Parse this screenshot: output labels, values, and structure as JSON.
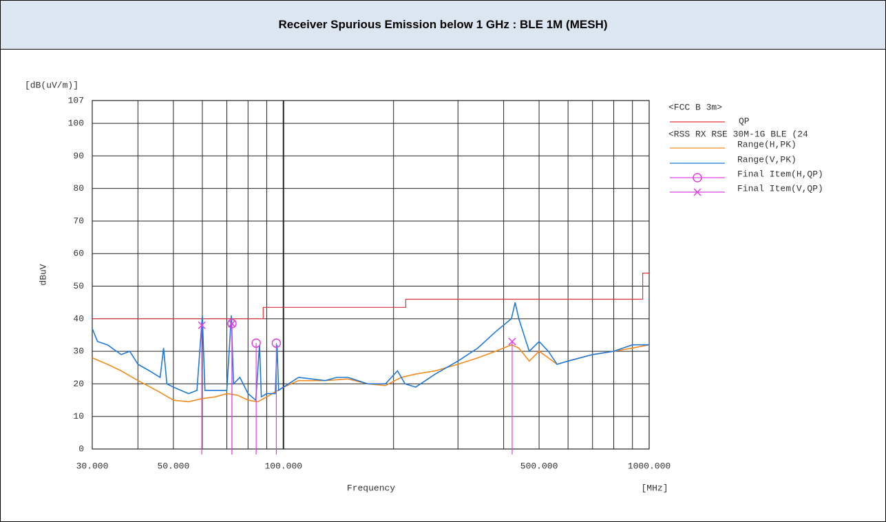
{
  "chart_data": {
    "type": "line",
    "title": "Receiver Spurious Emission below 1 GHz : BLE 1M (MESH)",
    "y_unit": "[dB(uV/m)]",
    "y_label": "dBuV",
    "x_label": "Frequency",
    "x_unit": "[MHz]",
    "x_log": true,
    "grid": true,
    "xlim": [
      30,
      1000
    ],
    "xticks": [
      {
        "value": 30,
        "label": "30.000"
      },
      {
        "value": 50,
        "label": "50.000"
      },
      {
        "value": 100,
        "label": "100.000"
      },
      {
        "value": 500,
        "label": "500.000"
      },
      {
        "value": 1000,
        "label": "1000.000"
      }
    ],
    "xminor": [
      40,
      60,
      70,
      80,
      90,
      200,
      300,
      400,
      600,
      700,
      800,
      900
    ],
    "ylim": [
      0,
      107
    ],
    "yticks": [
      0,
      10,
      20,
      30,
      40,
      50,
      60,
      70,
      80,
      90,
      100,
      107
    ],
    "legend_headers": [
      "<FCC B   3m>",
      "<RSS RX RSE 30M-1G BLE (24"
    ],
    "series": [
      {
        "name": "QP",
        "color": "#e0303a",
        "group": 0,
        "x": [
          30,
          88,
          88,
          216,
          216,
          960,
          960,
          1000
        ],
        "values": [
          40,
          40,
          43.5,
          43.5,
          46,
          46,
          54,
          54
        ]
      },
      {
        "name": "Range(H,PK)",
        "color": "#f28a1e",
        "group": 1,
        "x": [
          30,
          33,
          36,
          40,
          45,
          50,
          55,
          60,
          65,
          70,
          75,
          80,
          85,
          90,
          100,
          110,
          130,
          150,
          170,
          190,
          210,
          230,
          260,
          300,
          340,
          380,
          420,
          440,
          470,
          500,
          530,
          560,
          600,
          700,
          800,
          900,
          1000
        ],
        "values": [
          28,
          26,
          24,
          21,
          18,
          15,
          14.5,
          15.5,
          16,
          17,
          16.5,
          15,
          14.5,
          16,
          19,
          21,
          21,
          21.5,
          20,
          19.5,
          22,
          23,
          24,
          26,
          28,
          30,
          32,
          31,
          27,
          30,
          28,
          26,
          27,
          29,
          30,
          31,
          32
        ]
      },
      {
        "name": "Range(V,PK)",
        "color": "#1f78d8",
        "group": 1,
        "x": [
          30,
          31,
          33,
          36,
          38,
          40,
          43,
          46,
          47,
          48,
          50,
          55,
          58,
          60,
          61,
          65,
          70,
          72,
          73,
          76,
          80,
          84,
          86,
          87,
          90,
          95,
          96,
          97,
          100,
          110,
          130,
          140,
          150,
          170,
          190,
          205,
          215,
          230,
          260,
          300,
          340,
          380,
          420,
          430,
          440,
          470,
          500,
          530,
          560,
          600,
          700,
          800,
          900,
          1000
        ],
        "values": [
          37,
          33,
          32,
          29,
          30,
          26,
          24,
          22,
          31,
          20,
          19,
          17,
          18,
          41,
          18,
          18,
          18,
          41,
          20,
          22,
          17,
          15,
          32,
          16,
          17,
          17,
          32,
          18,
          19,
          22,
          21,
          22,
          22,
          20,
          20,
          24,
          20,
          19,
          23,
          27,
          31,
          36,
          40,
          45,
          40,
          30,
          33,
          30,
          26,
          27,
          29,
          30,
          32,
          32
        ]
      },
      {
        "name": "Final Item(H,QP)",
        "color": "#e040e0",
        "marker": "circle",
        "group": 1,
        "x": [
          72.3,
          84.2,
          95.6
        ],
        "values": [
          38.5,
          32.5,
          32.5
        ]
      },
      {
        "name": "Final Item(V,QP)",
        "color": "#e040e0",
        "marker": "x",
        "group": 1,
        "x": [
          59.8,
          72.3,
          422
        ],
        "values": [
          38,
          38.5,
          33
        ]
      }
    ]
  }
}
